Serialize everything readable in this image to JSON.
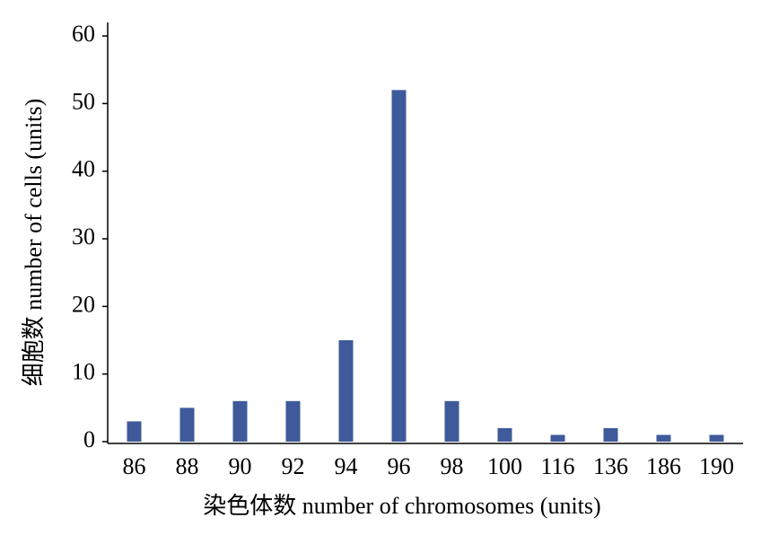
{
  "chart_data": {
    "type": "bar",
    "x_label": "染色体数 number of chromosomes (units)",
    "y_label": "细胞数 number of cells (units)",
    "categories": [
      "86",
      "88",
      "90",
      "92",
      "94",
      "96",
      "98",
      "100",
      "116",
      "136",
      "186",
      "190"
    ],
    "values": [
      3,
      5,
      6,
      6,
      15,
      52,
      6,
      2,
      1,
      2,
      1,
      1
    ],
    "color": "#3f5a9a",
    "ylim": [
      0,
      62
    ],
    "yticks": [
      0,
      10,
      20,
      30,
      40,
      50,
      60
    ],
    "grid": false
  }
}
